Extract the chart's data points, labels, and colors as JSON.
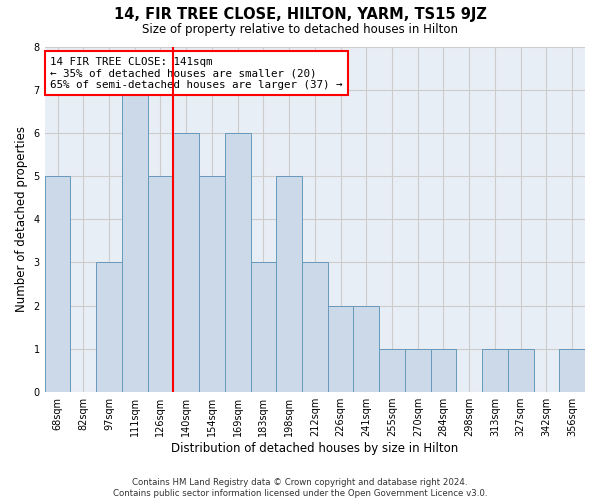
{
  "title": "14, FIR TREE CLOSE, HILTON, YARM, TS15 9JZ",
  "subtitle": "Size of property relative to detached houses in Hilton",
  "xlabel": "Distribution of detached houses by size in Hilton",
  "ylabel": "Number of detached properties",
  "bin_labels": [
    "68sqm",
    "82sqm",
    "97sqm",
    "111sqm",
    "126sqm",
    "140sqm",
    "154sqm",
    "169sqm",
    "183sqm",
    "198sqm",
    "212sqm",
    "226sqm",
    "241sqm",
    "255sqm",
    "270sqm",
    "284sqm",
    "298sqm",
    "313sqm",
    "327sqm",
    "342sqm",
    "356sqm"
  ],
  "bar_heights": [
    5,
    0,
    3,
    7,
    5,
    6,
    5,
    6,
    3,
    5,
    3,
    2,
    2,
    1,
    1,
    1,
    0,
    1,
    1,
    0,
    1
  ],
  "bar_color": "#ccd9e8",
  "bar_edge_color": "#6699bb",
  "annotation_text": "14 FIR TREE CLOSE: 141sqm\n← 35% of detached houses are smaller (20)\n65% of semi-detached houses are larger (37) →",
  "annotation_box_color": "white",
  "annotation_box_edge_color": "red",
  "vline_color": "red",
  "ylim": [
    0,
    8
  ],
  "yticks": [
    0,
    1,
    2,
    3,
    4,
    5,
    6,
    7,
    8
  ],
  "footer": "Contains HM Land Registry data © Crown copyright and database right 2024.\nContains public sector information licensed under the Open Government Licence v3.0.",
  "grid_color": "#cccccc",
  "background_color": "#e8eef5"
}
